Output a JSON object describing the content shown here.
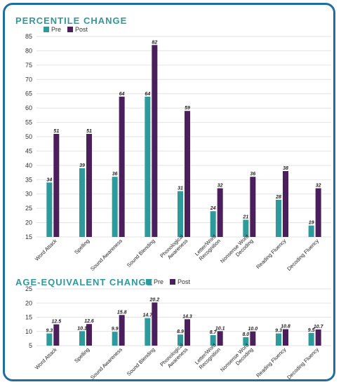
{
  "colors": {
    "pre": "#2e9a9c",
    "post": "#4b1e5c",
    "border": "#1f6f9e",
    "grid": "#e3e3e3",
    "title": "#2e9a9c"
  },
  "chart_data": [
    {
      "type": "bar",
      "title": "PERCENTILE CHANGE",
      "categories": [
        "Word Attack",
        "Spelling",
        "Sound Awareness",
        "Sound Blending",
        "Phonological Awareness",
        "Letter/Word Recognition",
        "Nonsense Word Decoding",
        "Reading Fluency",
        "Decoding Fluency"
      ],
      "category_lines": [
        [
          "Word Attack"
        ],
        [
          "Spelling"
        ],
        [
          "Sound Awareness"
        ],
        [
          "Sound Blending"
        ],
        [
          "Phonological",
          "Awareness"
        ],
        [
          "Letter/Word",
          "Recognition"
        ],
        [
          "Nonsense Word",
          "Decoding"
        ],
        [
          "Reading Fluency"
        ],
        [
          "Decoding Fluency"
        ]
      ],
      "series": [
        {
          "name": "Pre",
          "values": [
            34,
            39,
            36,
            64,
            31,
            24,
            21,
            28,
            19
          ],
          "labels": [
            "34",
            "39",
            "36",
            "64",
            "31",
            "24",
            "21",
            "28",
            "19"
          ]
        },
        {
          "name": "Post",
          "values": [
            51,
            51,
            64,
            82,
            59,
            32,
            36,
            38,
            32
          ],
          "labels": [
            "51",
            "51",
            "64",
            "82",
            "59",
            "32",
            "36",
            "38",
            "32"
          ]
        }
      ],
      "ylim": [
        15,
        85
      ],
      "yticks": [
        15,
        20,
        25,
        30,
        35,
        40,
        45,
        50,
        55,
        60,
        65,
        70,
        75,
        80,
        85
      ],
      "grid": true,
      "legend": "top-left"
    },
    {
      "type": "bar",
      "title": "AGE-EQUIVALENT CHANGE",
      "categories": [
        "Word Attack",
        "Spelling",
        "Sound Awareness",
        "Sound Blending",
        "Phonological Awareness",
        "Letter/Word Recognition",
        "Nonsense Word Decoding",
        "Reading Fluency",
        "Decoding Fluency"
      ],
      "category_lines": [
        [
          "Word Attack"
        ],
        [
          "Spelling"
        ],
        [
          "Sound Awareness"
        ],
        [
          "Sound Blending"
        ],
        [
          "Phonological",
          "Awareness"
        ],
        [
          "Letter/Word",
          "Recognition"
        ],
        [
          "Nonsense Word",
          "Decoding"
        ],
        [
          "Reading Fluency"
        ],
        [
          "Decoding Fluency"
        ]
      ],
      "series": [
        {
          "name": "Pre",
          "values": [
            9.3,
            10.1,
            9.9,
            14.7,
            8.9,
            8.7,
            8.0,
            9.3,
            9.5
          ],
          "labels": [
            "9.3",
            "10.1",
            "9.9",
            "14.7",
            "8.9",
            "8.7",
            "8.0",
            "9.3",
            "9.5"
          ]
        },
        {
          "name": "Post",
          "values": [
            12.5,
            12.6,
            15.8,
            20.2,
            14.3,
            10.1,
            10.0,
            10.8,
            10.7
          ],
          "labels": [
            "12.5",
            "12.6",
            "15.8",
            "20.2",
            "14.3",
            "10.1",
            "10.0",
            "10.8",
            "10.7"
          ]
        }
      ],
      "ylim": [
        5,
        25
      ],
      "yticks": [
        5,
        10,
        15,
        20,
        25
      ],
      "grid": true,
      "legend": "top-right of title"
    }
  ]
}
